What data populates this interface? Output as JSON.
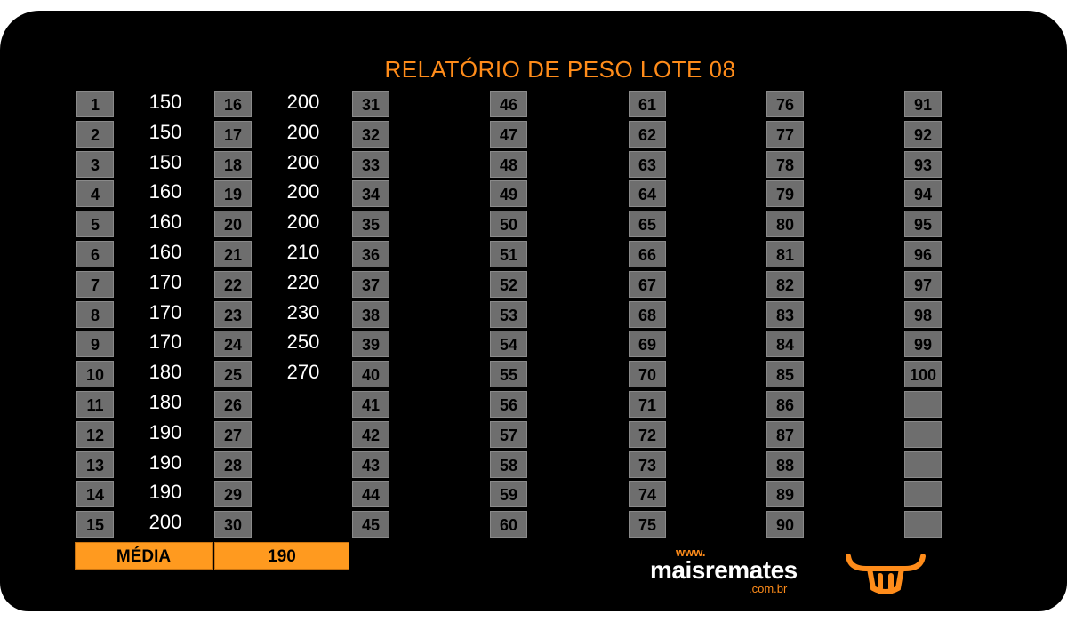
{
  "title": "RELATÓRIO DE PESO LOTE 08",
  "columns": [
    {
      "numbers": [
        "1",
        "2",
        "3",
        "4",
        "5",
        "6",
        "7",
        "8",
        "9",
        "10",
        "11",
        "12",
        "13",
        "14",
        "15"
      ],
      "values": [
        "150",
        "150",
        "150",
        "160",
        "160",
        "160",
        "170",
        "170",
        "170",
        "180",
        "180",
        "190",
        "190",
        "190",
        "200"
      ]
    },
    {
      "numbers": [
        "16",
        "17",
        "18",
        "19",
        "20",
        "21",
        "22",
        "23",
        "24",
        "25",
        "26",
        "27",
        "28",
        "29",
        "30"
      ],
      "values": [
        "200",
        "200",
        "200",
        "200",
        "200",
        "210",
        "220",
        "230",
        "250",
        "270",
        "",
        "",
        "",
        "",
        ""
      ]
    },
    {
      "numbers": [
        "31",
        "32",
        "33",
        "34",
        "35",
        "36",
        "37",
        "38",
        "39",
        "40",
        "41",
        "42",
        "43",
        "44",
        "45"
      ],
      "values": []
    },
    {
      "numbers": [
        "46",
        "47",
        "48",
        "49",
        "50",
        "51",
        "52",
        "53",
        "54",
        "55",
        "56",
        "57",
        "58",
        "59",
        "60"
      ],
      "values": []
    },
    {
      "numbers": [
        "61",
        "62",
        "63",
        "64",
        "65",
        "66",
        "67",
        "68",
        "69",
        "70",
        "71",
        "72",
        "73",
        "74",
        "75"
      ],
      "values": []
    },
    {
      "numbers": [
        "76",
        "77",
        "78",
        "79",
        "80",
        "81",
        "82",
        "83",
        "84",
        "85",
        "86",
        "87",
        "88",
        "89",
        "90"
      ],
      "values": []
    },
    {
      "numbers": [
        "91",
        "92",
        "93",
        "94",
        "95",
        "96",
        "97",
        "98",
        "99",
        "100",
        "",
        "",
        "",
        "",
        ""
      ],
      "values": []
    }
  ],
  "summary": {
    "label": "MÉDIA",
    "value": "190"
  },
  "logo": {
    "prefix": "www.",
    "name": "maisremates",
    "suffix": ".com.br",
    "icon": "bull-head-icon"
  },
  "colors": {
    "accent": "#ff8c1a",
    "background": "#000000",
    "cell": "#6e6e6e"
  }
}
